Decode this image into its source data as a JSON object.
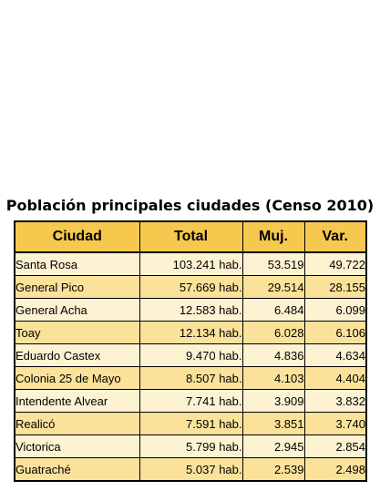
{
  "title": "Población principales ciudades (Censo 2010)",
  "headers": {
    "ciudad": "Ciudad",
    "total": "Total",
    "muj": "Muj.",
    "var": "Var."
  },
  "rows": [
    {
      "ciudad": "Santa Rosa",
      "total": "103.241 hab.",
      "muj": "53.519",
      "var": "49.722"
    },
    {
      "ciudad": "General Pico",
      "total": "57.669 hab.",
      "muj": "29.514",
      "var": "28.155"
    },
    {
      "ciudad": "General Acha",
      "total": "12.583 hab.",
      "muj": "6.484",
      "var": "6.099"
    },
    {
      "ciudad": "Toay",
      "total": "12.134 hab.",
      "muj": "6.028",
      "var": "6.106"
    },
    {
      "ciudad": "Eduardo Castex",
      "total": "9.470 hab.",
      "muj": "4.836",
      "var": "4.634"
    },
    {
      "ciudad": "Colonia 25 de Mayo",
      "total": "8.507 hab.",
      "muj": "4.103",
      "var": "4.404"
    },
    {
      "ciudad": "Intendente Alvear",
      "total": "7.741 hab.",
      "muj": "3.909",
      "var": "3.832"
    },
    {
      "ciudad": "Realicó",
      "total": "7.591 hab.",
      "muj": "3.851",
      "var": "3.740"
    },
    {
      "ciudad": "Victorica",
      "total": "5.799 hab.",
      "muj": "2.945",
      "var": "2.854"
    },
    {
      "ciudad": "Guatraché",
      "total": "5.037 hab.",
      "muj": "2.539",
      "var": "2.498"
    }
  ],
  "colors": {
    "header_bg": "#f6c84e",
    "row_light": "#fdf2d2",
    "row_dark": "#fbe29a"
  }
}
